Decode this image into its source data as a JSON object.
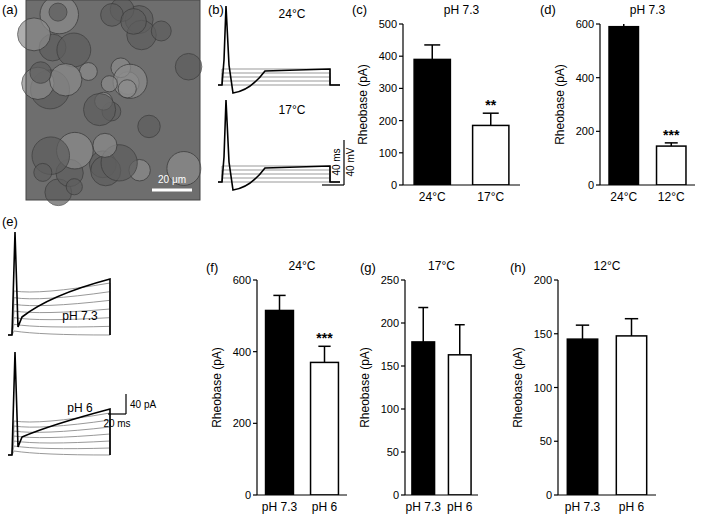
{
  "chart_data": [
    {
      "type": "bar",
      "panel_label": "(c)",
      "title": "pH 7.3",
      "y_label": "Rheobase (pA)",
      "categories": [
        "24°C",
        "17°C"
      ],
      "values": [
        390,
        185
      ],
      "errors": [
        45,
        38
      ],
      "colors": [
        "#000000",
        "#ffffff"
      ],
      "ylim": [
        0,
        500
      ],
      "yticks": [
        0,
        100,
        200,
        300,
        400,
        500
      ],
      "annotations": [
        {
          "text": "**",
          "category": "17°C"
        }
      ]
    },
    {
      "type": "bar",
      "panel_label": "(d)",
      "title": "pH 7.3",
      "y_label": "Rheobase (pA)",
      "categories": [
        "24°C",
        "12°C"
      ],
      "values": [
        590,
        145
      ],
      "errors": [
        35,
        12
      ],
      "colors": [
        "#000000",
        "#ffffff"
      ],
      "ylim": [
        0,
        600
      ],
      "yticks": [
        0,
        200,
        400,
        600
      ],
      "annotations": [
        {
          "text": "***",
          "category": "12°C"
        }
      ]
    },
    {
      "type": "bar",
      "panel_label": "(f)",
      "title": "24°C",
      "y_label": "Rheobase (pA)",
      "categories": [
        "pH 7.3",
        "pH 6"
      ],
      "values": [
        515,
        370
      ],
      "errors": [
        42,
        45
      ],
      "colors": [
        "#000000",
        "#ffffff"
      ],
      "ylim": [
        0,
        600
      ],
      "yticks": [
        0,
        200,
        400,
        600
      ],
      "annotations": [
        {
          "text": "***",
          "category": "pH 6"
        }
      ]
    },
    {
      "type": "bar",
      "panel_label": "(g)",
      "title": "17°C",
      "y_label": "Rheobase (pA)",
      "categories": [
        "pH 7.3",
        "pH 6"
      ],
      "values": [
        178,
        163
      ],
      "errors": [
        40,
        35
      ],
      "colors": [
        "#000000",
        "#ffffff"
      ],
      "ylim": [
        0,
        250
      ],
      "yticks": [
        0,
        50,
        100,
        150,
        200,
        250
      ],
      "annotations": []
    },
    {
      "type": "bar",
      "panel_label": "(h)",
      "title": "12°C",
      "y_label": "Rheobase (pA)",
      "categories": [
        "pH 7.3",
        "pH 6"
      ],
      "values": [
        145,
        148
      ],
      "errors": [
        13,
        16
      ],
      "colors": [
        "#000000",
        "#ffffff"
      ],
      "ylim": [
        0,
        200
      ],
      "yticks": [
        0,
        50,
        100,
        150,
        200
      ],
      "annotations": []
    }
  ],
  "figure": {
    "a": {
      "panel_label": "(a)",
      "scale_bar": "20 μm"
    },
    "b": {
      "panel_label": "(b)",
      "traces": [
        "24°C",
        "17°C"
      ],
      "scale_x": "40 ms",
      "scale_y": "40 mV"
    },
    "e": {
      "panel_label": "(e)",
      "traces": [
        "pH 7.3",
        "pH 6"
      ],
      "scale_x": "20 ms",
      "scale_y": "40 pA"
    }
  }
}
